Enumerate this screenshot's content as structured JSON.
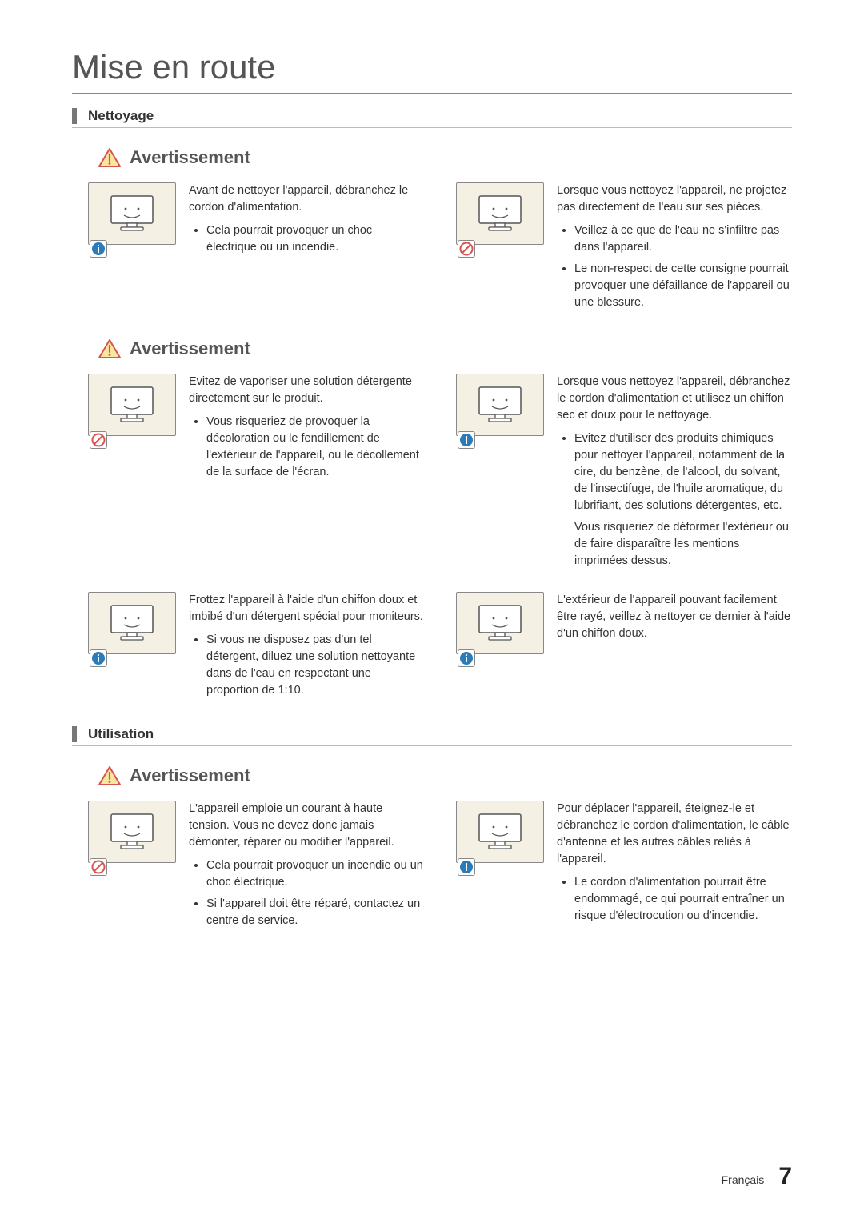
{
  "page": {
    "title": "Mise en route",
    "language": "Français",
    "number": "7"
  },
  "colors": {
    "info": "#2b7bb9",
    "prohibit": "#d9534f",
    "warning_triangle_stroke": "#d9534f",
    "warning_triangle_fill": "#f9e79f",
    "illus_bg": "#f4f1e4"
  },
  "sections": [
    {
      "id": "nettoyage",
      "title": "Nettoyage",
      "groups": [
        {
          "warning": "Avertissement",
          "rows": [
            {
              "left": {
                "badge": "info",
                "lead": "Avant de nettoyer l'appareil, débranchez le cordon d'alimentation.",
                "bullets": [
                  "Cela pourrait provoquer un choc électrique ou un incendie."
                ]
              },
              "right": {
                "badge": "prohibit",
                "lead": "Lorsque vous nettoyez l'appareil, ne projetez pas directement de l'eau sur ses pièces.",
                "bullets": [
                  "Veillez à ce que de l'eau ne s'infiltre pas dans l'appareil.",
                  "Le non-respect de cette consigne pourrait provoquer une défaillance de l'appareil ou une blessure."
                ]
              }
            }
          ]
        },
        {
          "warning": "Avertissement",
          "rows": [
            {
              "left": {
                "badge": "prohibit",
                "lead": "Evitez de vaporiser une solution détergente directement sur le produit.",
                "bullets": [
                  "Vous risqueriez de provoquer la décoloration ou le fendillement de l'extérieur de l'appareil, ou le décollement de la surface de l'écran."
                ]
              },
              "right": {
                "badge": "info",
                "lead": "Lorsque vous nettoyez l'appareil, débranchez le cordon d'alimentation et utilisez un chiffon sec et doux pour le nettoyage.",
                "bullets": [
                  "Evitez d'utiliser des produits chimiques pour nettoyer l'appareil, notamment de la cire, du benzène, de l'alcool, du solvant, de l'insectifuge, de l'huile aromatique, du lubrifiant, des solutions détergentes, etc."
                ],
                "sub": "Vous risqueriez de déformer l'extérieur ou de faire disparaître les mentions imprimées dessus."
              }
            },
            {
              "left": {
                "badge": "info",
                "lead": "Frottez l'appareil à l'aide d'un chiffon doux et imbibé d'un détergent spécial pour moniteurs.",
                "bullets": [
                  "Si vous ne disposez pas d'un tel détergent, diluez une solution nettoyante dans de l'eau en respectant une proportion de 1:10."
                ]
              },
              "right": {
                "badge": "info",
                "lead": "L'extérieur de l'appareil pouvant facilement être rayé, veillez à nettoyer ce dernier à l'aide d'un chiffon doux.",
                "bullets": []
              }
            }
          ]
        }
      ]
    },
    {
      "id": "utilisation",
      "title": "Utilisation",
      "groups": [
        {
          "warning": "Avertissement",
          "rows": [
            {
              "left": {
                "badge": "prohibit",
                "lead": "L'appareil emploie un courant à haute tension. Vous ne devez donc jamais démonter, réparer ou modifier l'appareil.",
                "bullets": [
                  "Cela pourrait provoquer un incendie ou un choc électrique.",
                  "Si l'appareil doit être réparé, contactez un centre de service."
                ]
              },
              "right": {
                "badge": "info",
                "lead": "Pour déplacer l'appareil, éteignez-le et débranchez le cordon d'alimentation, le câble d'antenne et les autres câbles reliés à l'appareil.",
                "bullets": [
                  "Le cordon d'alimentation pourrait être endommagé, ce qui pourrait entraîner un risque d'électrocution ou d'incendie."
                ]
              }
            }
          ]
        }
      ]
    }
  ]
}
